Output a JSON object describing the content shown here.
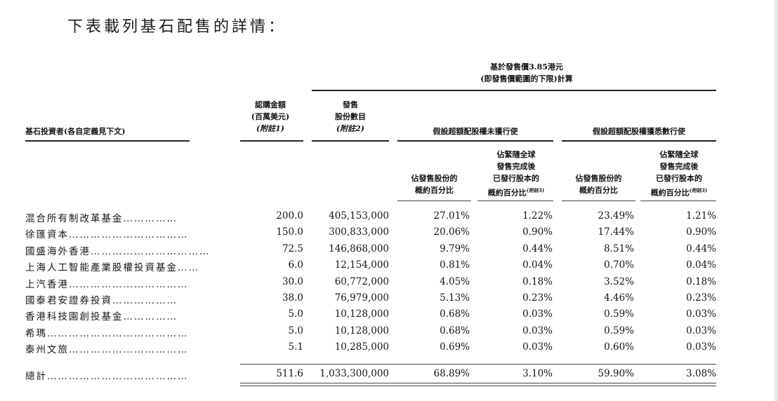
{
  "title": "下表載列基石配售的詳情：",
  "headers": {
    "basis": "基於發售價3.85港元",
    "basis_sub": "(即發售價範圍的下限)計算",
    "investor": "基石投資者(各自定義見下文)",
    "subscription_l1": "認購金額",
    "subscription_l2": "(百萬美元)",
    "subscription_l3": "(附註1)",
    "shares_l1": "發售",
    "shares_l2": "股份數目",
    "shares_l3": "(附註2)",
    "group_a": "假設超額配股權未獲行使",
    "group_b": "假設超額配股權獲悉數行使",
    "pct_offer_l1": "佔發售股份的",
    "pct_offer_l2": "概約百分比",
    "pct_total_l1": "佔緊隨全球",
    "pct_total_l2": "發售完成後",
    "pct_total_l3": "已發行股本的",
    "pct_total_l4": "概約百分比",
    "pct_total_note": "(附註3)",
    "pct_offer_b_l1": "佔發售股份的",
    "pct_offer_b_l2": "概約百分比",
    "pct_total_b_l1": "佔緊隨全球",
    "pct_total_b_l2": "發售完成後",
    "pct_total_b_l3": "已發行股本的",
    "pct_total_b_l4": "概約百分比",
    "pct_total_b_note": "(附註3)"
  },
  "rows": [
    {
      "name": "混合所有制改革基金",
      "dots": "……………",
      "amount": "200.0",
      "shares": "405,153,000",
      "a_offer": "27.01%",
      "a_total": "1.22%",
      "b_offer": "23.49%",
      "b_total": "1.21%"
    },
    {
      "name": "徐匯資本",
      "dots": "……………………………",
      "amount": "150.0",
      "shares": "300,833,000",
      "a_offer": "20.06%",
      "a_total": "0.90%",
      "b_offer": "17.44%",
      "b_total": "0.90%"
    },
    {
      "name": "國盛海外香港",
      "dots": "……………………………",
      "amount": "72.5",
      "shares": "146,868,000",
      "a_offer": "9.79%",
      "a_total": "0.44%",
      "b_offer": "8.51%",
      "b_total": "0.44%"
    },
    {
      "name": "上海人工智能產業股權投資基金",
      "dots": "……",
      "amount": "6.0",
      "shares": "12,154,000",
      "a_offer": "0.81%",
      "a_total": "0.04%",
      "b_offer": "0.70%",
      "b_total": "0.04%"
    },
    {
      "name": "上汽香港",
      "dots": "……………………………",
      "amount": "30.0",
      "shares": "60,772,000",
      "a_offer": "4.05%",
      "a_total": "0.18%",
      "b_offer": "3.52%",
      "b_total": "0.18%"
    },
    {
      "name": "國泰君安證券投資",
      "dots": "………………",
      "amount": "38.0",
      "shares": "76,979,000",
      "a_offer": "5.13%",
      "a_total": "0.23%",
      "b_offer": "4.46%",
      "b_total": "0.23%"
    },
    {
      "name": "香港科技園創投基金",
      "dots": "……………",
      "amount": "5.0",
      "shares": "10,128,000",
      "a_offer": "0.68%",
      "a_total": "0.03%",
      "b_offer": "0.59%",
      "b_total": "0.03%"
    },
    {
      "name": "希瑪",
      "dots": "…………………………………",
      "amount": "5.0",
      "shares": "10,128,000",
      "a_offer": "0.68%",
      "a_total": "0.03%",
      "b_offer": "0.59%",
      "b_total": "0.03%"
    },
    {
      "name": "泰州文旅",
      "dots": "……………………………",
      "amount": "5.1",
      "shares": "10,285,000",
      "a_offer": "0.69%",
      "a_total": "0.03%",
      "b_offer": "0.60%",
      "b_total": "0.03%"
    }
  ],
  "total": {
    "name": "總計",
    "dots": "…………………………………",
    "amount": "511.6",
    "shares": "1,033,300,000",
    "a_offer": "68.89%",
    "a_total": "3.10%",
    "b_offer": "59.90%",
    "b_total": "3.08%"
  }
}
